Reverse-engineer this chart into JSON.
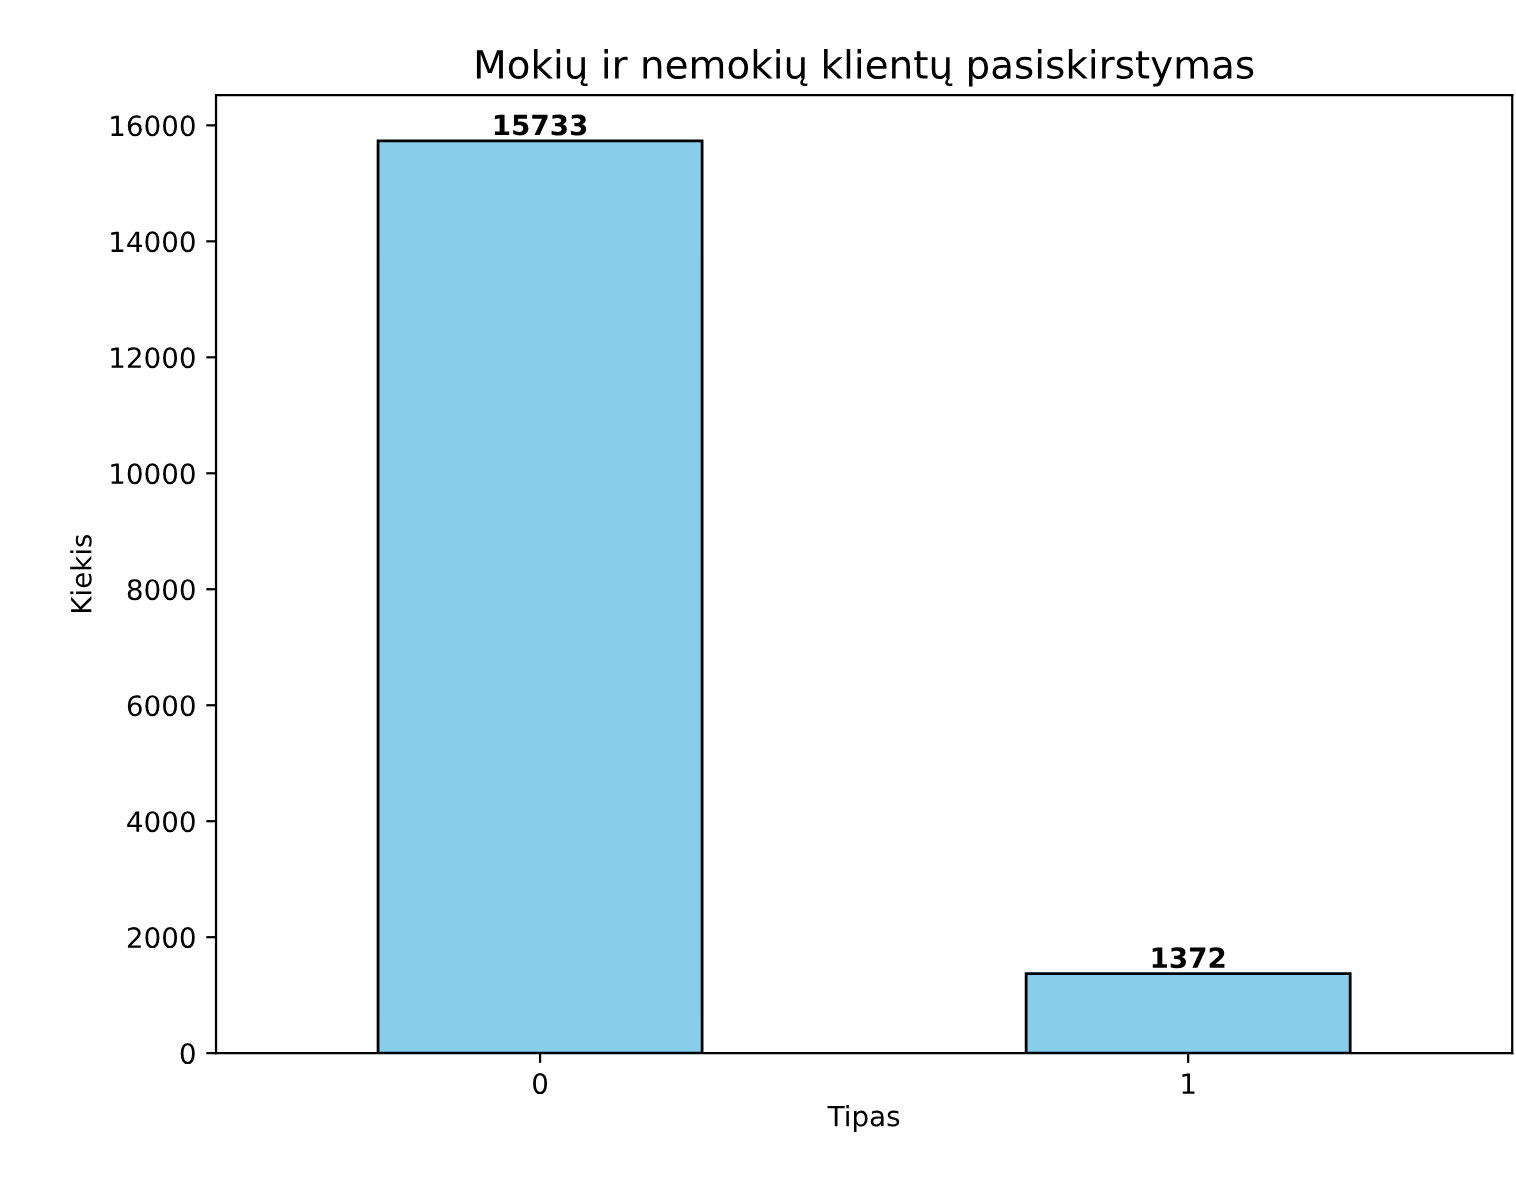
{
  "chart_data": {
    "type": "bar",
    "title": "Mokių ir nemokių klientų pasiskirstymas",
    "xlabel": "Tipas",
    "ylabel": "Kiekis",
    "categories": [
      "0",
      "1"
    ],
    "values": [
      15733,
      1372
    ],
    "color": "#87ceeb",
    "ylim": [
      0,
      16520
    ],
    "yticks": [
      0,
      2000,
      4000,
      6000,
      8000,
      10000,
      12000,
      14000,
      16000
    ],
    "data_labels": true,
    "grid": false,
    "legend": false
  }
}
